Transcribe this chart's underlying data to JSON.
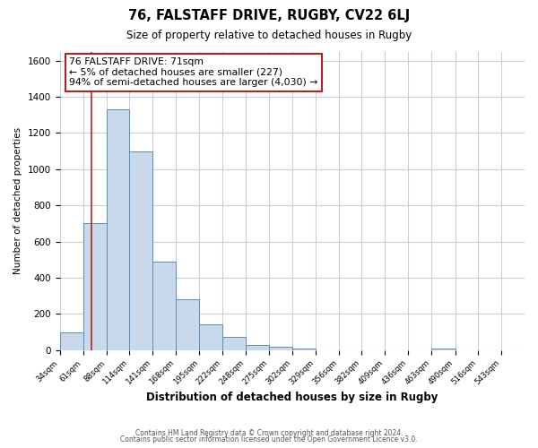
{
  "title": "76, FALSTAFF DRIVE, RUGBY, CV22 6LJ",
  "subtitle": "Size of property relative to detached houses in Rugby",
  "xlabel": "Distribution of detached houses by size in Rugby",
  "ylabel": "Number of detached properties",
  "bar_edges": [
    34,
    61,
    88,
    114,
    141,
    168,
    195,
    222,
    248,
    275,
    302,
    329,
    356,
    382,
    409,
    436,
    463,
    490,
    516,
    543,
    570
  ],
  "bar_heights": [
    100,
    700,
    1330,
    1100,
    490,
    280,
    140,
    75,
    30,
    20,
    10,
    0,
    0,
    0,
    0,
    0,
    10,
    0,
    0,
    0
  ],
  "bar_color": "#c9d9ec",
  "bar_edgecolor": "#5b8db8",
  "property_line_x": 71,
  "property_line_color": "#b22222",
  "annotation_title": "76 FALSTAFF DRIVE: 71sqm",
  "annotation_line1": "← 5% of detached houses are smaller (227)",
  "annotation_line2": "94% of semi-detached houses are larger (4,030) →",
  "annotation_box_facecolor": "#ffffff",
  "annotation_box_edgecolor": "#b22222",
  "ylim": [
    0,
    1650
  ],
  "yticks": [
    0,
    200,
    400,
    600,
    800,
    1000,
    1200,
    1400,
    1600
  ],
  "grid_color": "#c8d0dc",
  "background_color": "#ffffff",
  "footer1": "Contains HM Land Registry data © Crown copyright and database right 2024.",
  "footer2": "Contains public sector information licensed under the Open Government Licence v3.0."
}
